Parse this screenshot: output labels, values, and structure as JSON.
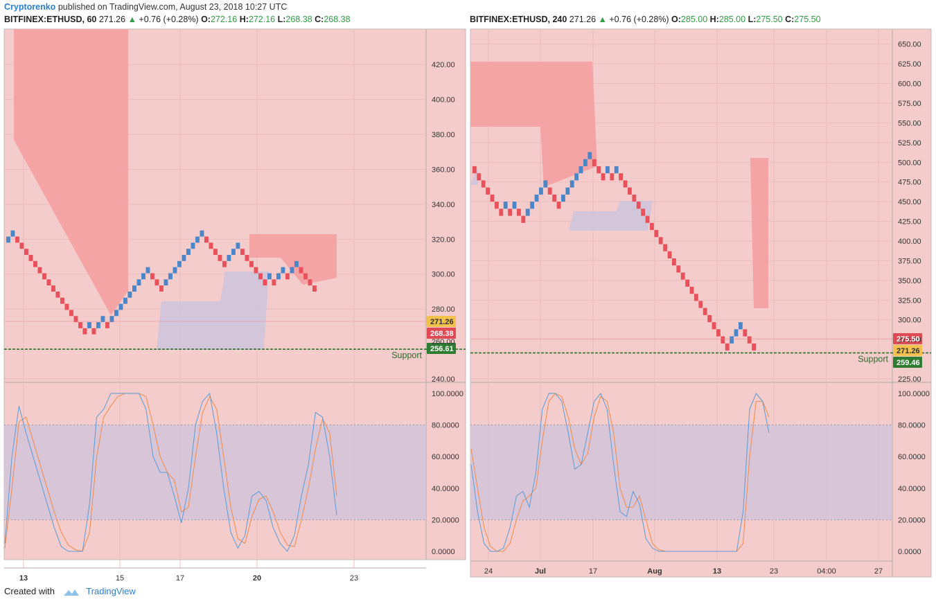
{
  "header": {
    "author": "Cryptorenko",
    "published_text": "published on TradingView.com, August 23, 2018 10:27 UTC"
  },
  "panels": [
    {
      "symbol": "BITFINEX:ETHUSD, 60",
      "last": "271.26",
      "change": "+0.76 (+0.28%)",
      "o": "272.16",
      "h": "272.16",
      "l": "268.38",
      "c": "268.38"
    },
    {
      "symbol": "BITFINEX:ETHUSD, 240",
      "last": "271.26",
      "change": "+0.76 (+0.28%)",
      "o": "285.00",
      "h": "285.00",
      "l": "275.50",
      "c": "275.50"
    }
  ],
  "footer": {
    "created_with": "Created with",
    "brand": "TradingView"
  },
  "colors": {
    "panel_bg": "#f4cccc",
    "up_brick": "#4a86c8",
    "down_brick": "#e8505b",
    "cloud_red": "#f4a0a0",
    "cloud_violet": "#cfc4dc",
    "support_line": "#1e6b1e",
    "k_line": "#5b9bd5",
    "d_line": "#f08a4b",
    "price_badge_yellow": "#f2c14e",
    "price_badge_red": "#e04a55",
    "price_badge_green": "#2e7d32"
  },
  "chart_data": [
    {
      "type": "renko",
      "title": "BITFINEX:ETHUSD, 60",
      "ylim": [
        240,
        430
      ],
      "y_ticks": [
        "420.00",
        "400.00",
        "380.00",
        "360.00",
        "340.00",
        "320.00",
        "300.00",
        "280.00",
        "240.00"
      ],
      "x_ticks": [
        "13",
        "15",
        "17",
        "20",
        "23"
      ],
      "bricks": [
        "u",
        "u",
        "d",
        "d",
        "d",
        "d",
        "d",
        "d",
        "d",
        "d",
        "d",
        "d",
        "d",
        "d",
        "d",
        "d",
        "d",
        "d",
        "u",
        "d",
        "u",
        "u",
        "d",
        "u",
        "u",
        "u",
        "u",
        "u",
        "u",
        "u",
        "u",
        "u",
        "d",
        "d",
        "d",
        "u",
        "u",
        "u",
        "u",
        "u",
        "u",
        "u",
        "u",
        "u",
        "d",
        "d",
        "d",
        "d",
        "d",
        "u",
        "u",
        "u",
        "d",
        "d",
        "d",
        "d",
        "d",
        "d",
        "u",
        "d",
        "u",
        "u",
        "d",
        "u",
        "u",
        "d",
        "d",
        "d",
        "d"
      ],
      "brick_start_price": 318,
      "brick_size": 3.5,
      "annotations": {
        "support_label": "Support",
        "support_price": 257
      },
      "price_labels": [
        "271.26",
        "268.38",
        "256.61"
      ],
      "hidden_label": "260.00",
      "oscillator": {
        "y_ticks": [
          "100.0000",
          "80.0000",
          "60.0000",
          "40.0000",
          "20.0000",
          "0.0000"
        ],
        "band": [
          20,
          80
        ],
        "k": [
          5,
          60,
          92,
          75,
          60,
          45,
          30,
          15,
          3,
          0,
          0,
          0,
          30,
          85,
          90,
          100,
          100,
          100,
          100,
          100,
          90,
          60,
          50,
          50,
          35,
          18,
          40,
          80,
          95,
          100,
          75,
          40,
          12,
          2,
          10,
          35,
          38,
          32,
          15,
          5,
          0,
          10,
          35,
          55,
          88,
          85,
          60,
          23
        ],
        "d": [
          2,
          40,
          82,
          85,
          70,
          55,
          40,
          25,
          12,
          4,
          1,
          0,
          12,
          60,
          85,
          92,
          98,
          100,
          100,
          100,
          98,
          80,
          60,
          50,
          45,
          25,
          28,
          60,
          88,
          98,
          90,
          60,
          28,
          8,
          5,
          22,
          33,
          35,
          25,
          12,
          4,
          3,
          20,
          40,
          65,
          84,
          75,
          35
        ]
      }
    },
    {
      "type": "renko",
      "title": "BITFINEX:ETHUSD, 240",
      "ylim": [
        225,
        655
      ],
      "y_ticks": [
        "650.00",
        "625.00",
        "600.00",
        "575.00",
        "550.00",
        "525.00",
        "500.00",
        "475.00",
        "450.00",
        "425.00",
        "400.00",
        "375.00",
        "350.00",
        "325.00",
        "300.00",
        "275.00",
        "225.00"
      ],
      "x_ticks": [
        "24",
        "Jul",
        "17",
        "Aug",
        "13",
        "23",
        "04:00",
        "27"
      ],
      "bricks": [
        "d",
        "d",
        "d",
        "d",
        "d",
        "d",
        "d",
        "u",
        "d",
        "u",
        "d",
        "d",
        "u",
        "u",
        "u",
        "u",
        "u",
        "d",
        "d",
        "d",
        "u",
        "u",
        "u",
        "u",
        "u",
        "u",
        "u",
        "d",
        "d",
        "d",
        "u",
        "d",
        "u",
        "d",
        "d",
        "d",
        "d",
        "d",
        "d",
        "d",
        "d",
        "d",
        "d",
        "d",
        "d",
        "d",
        "d",
        "d",
        "d",
        "d",
        "d",
        "d",
        "d",
        "d",
        "d",
        "d",
        "d",
        "d",
        "u",
        "u",
        "u",
        "d",
        "d",
        "d"
      ],
      "brick_start_price": 495,
      "brick_size": 9,
      "annotations": {
        "support_label": "Support",
        "support_price": 258
      },
      "price_labels": [
        "275.50",
        "271.26",
        "259.46"
      ],
      "oscillator": {
        "y_ticks": [
          "100.0000",
          "80.0000",
          "60.0000",
          "40.0000",
          "20.0000",
          "0.0000"
        ],
        "band": [
          20,
          80
        ],
        "k": [
          55,
          25,
          5,
          0,
          0,
          2,
          15,
          35,
          38,
          28,
          50,
          90,
          100,
          100,
          95,
          75,
          52,
          55,
          75,
          95,
          100,
          90,
          55,
          25,
          22,
          38,
          30,
          8,
          2,
          0,
          0,
          0,
          0,
          0,
          0,
          0,
          0,
          0,
          0,
          0,
          0,
          0,
          25,
          90,
          100,
          95,
          75
        ],
        "d": [
          65,
          40,
          15,
          3,
          0,
          0,
          5,
          20,
          32,
          35,
          40,
          70,
          95,
          100,
          98,
          85,
          65,
          55,
          62,
          85,
          98,
          95,
          75,
          40,
          28,
          28,
          35,
          20,
          5,
          1,
          0,
          0,
          0,
          0,
          0,
          0,
          0,
          0,
          0,
          0,
          0,
          0,
          5,
          60,
          95,
          95,
          85
        ]
      }
    }
  ]
}
